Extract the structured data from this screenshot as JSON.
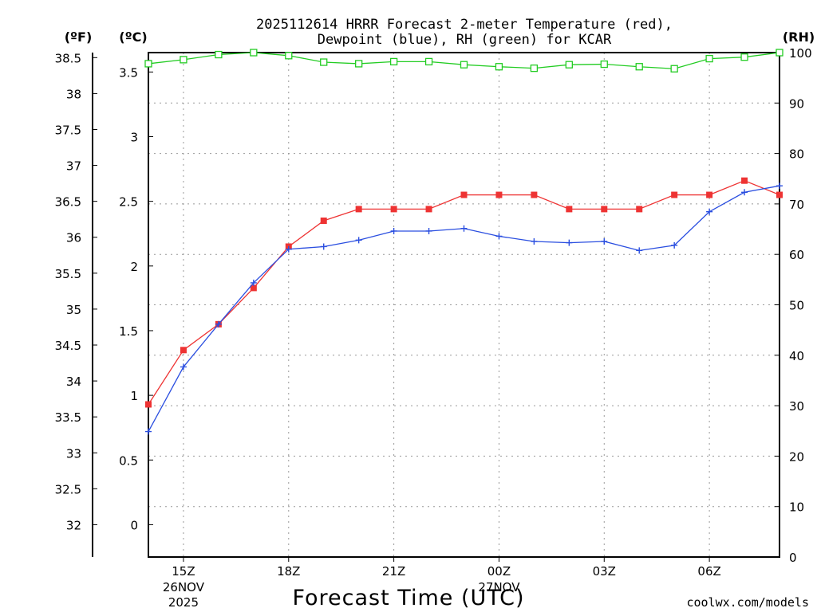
{
  "chart_data": {
    "type": "line",
    "title_line1": "2025112614 HRRR Forecast 2-meter Temperature (red),",
    "title_line2": "Dewpoint (blue), RH (green) for KCAR",
    "axis_labels": {
      "left_outer": "(ºF)",
      "left_inner": "(ºC)",
      "right": "(RH)"
    },
    "xlabel": "Forecast Time (UTC)",
    "credit": "coolwx.com/models",
    "x_hours": [
      14,
      15,
      16,
      17,
      18,
      19,
      20,
      21,
      22,
      23,
      24,
      25,
      26,
      27,
      28,
      29,
      30,
      31,
      32
    ],
    "x_range": [
      14,
      32
    ],
    "x_ticks": [
      {
        "hour": 15,
        "label": "15Z",
        "date": "26NOV",
        "year": "2025"
      },
      {
        "hour": 18,
        "label": "18Z",
        "date": "",
        "year": ""
      },
      {
        "hour": 21,
        "label": "21Z",
        "date": "",
        "year": ""
      },
      {
        "hour": 24,
        "label": "00Z",
        "date": "27NOV",
        "year": ""
      },
      {
        "hour": 27,
        "label": "03Z",
        "date": "",
        "year": ""
      },
      {
        "hour": 30,
        "label": "06Z",
        "date": "",
        "year": ""
      }
    ],
    "celsius_range": [
      -0.25,
      3.65
    ],
    "celsius_ticks": [
      "0",
      "0.5",
      "1",
      "1.5",
      "2",
      "2.5",
      "3",
      "3.5"
    ],
    "fahrenheit_ticks": [
      "32",
      "32.5",
      "33",
      "33.5",
      "34",
      "34.5",
      "35",
      "35.5",
      "36",
      "36.5",
      "37",
      "37.5",
      "38",
      "38.5"
    ],
    "rh_range": [
      0,
      100
    ],
    "rh_ticks": [
      "0",
      "10",
      "20",
      "30",
      "40",
      "50",
      "60",
      "70",
      "80",
      "90",
      "100"
    ],
    "series": [
      {
        "name": "Temperature",
        "axis": "celsius",
        "color": "#ee3333",
        "marker": "filled-square",
        "values": [
          0.93,
          1.35,
          1.55,
          1.83,
          2.15,
          2.35,
          2.44,
          2.44,
          2.44,
          2.55,
          2.55,
          2.55,
          2.44,
          2.44,
          2.44,
          2.55,
          2.55,
          2.66,
          2.55
        ]
      },
      {
        "name": "Dewpoint",
        "axis": "celsius",
        "color": "#2a4ee0",
        "marker": "plus",
        "values": [
          0.72,
          1.22,
          1.55,
          1.87,
          2.13,
          2.15,
          2.2,
          2.27,
          2.27,
          2.29,
          2.23,
          2.19,
          2.18,
          2.19,
          2.12,
          2.16,
          2.42,
          2.57,
          2.62
        ]
      },
      {
        "name": "RH",
        "axis": "rh",
        "color": "#22cc22",
        "marker": "open-square",
        "values": [
          97.8,
          98.6,
          99.6,
          100,
          99.4,
          98.1,
          97.8,
          98.2,
          98.2,
          97.6,
          97.2,
          96.9,
          97.6,
          97.7,
          97.2,
          96.8,
          98.8,
          99.1,
          100
        ]
      }
    ]
  }
}
